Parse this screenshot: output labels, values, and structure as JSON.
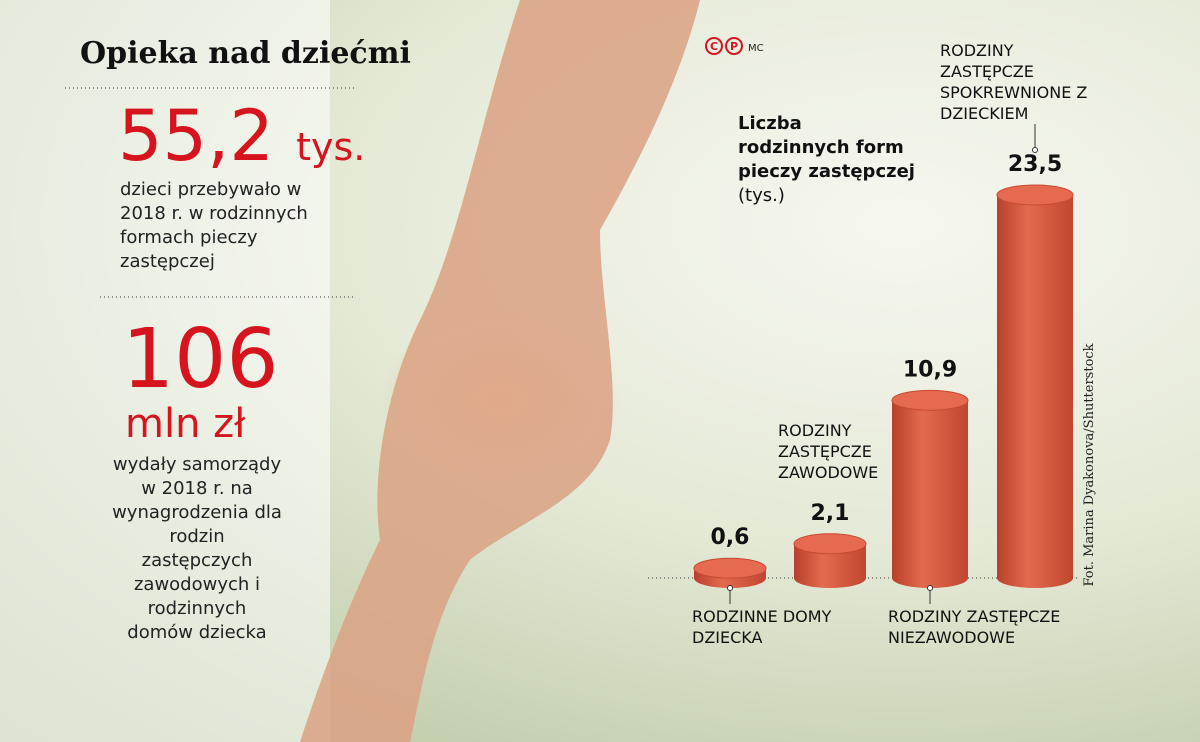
{
  "header": {
    "title": "Opieka nad dziećmi",
    "credit": "MC",
    "photo_credit": "Fot. Marina Dyakonova/Shutterstock"
  },
  "stats": [
    {
      "value": "55,2",
      "unit": "tys.",
      "text": "dzieci przebywało w 2018 r. w rodzinnych formach pieczy zastępczej"
    },
    {
      "value": "106",
      "unit": "mln zł",
      "text": "wydały samorządy w 2018 r. na wynagrodzenia dla rodzin zastępczych zawodowych i rodzinnych domów dziecka"
    }
  ],
  "chart_data": {
    "type": "bar",
    "title": "Liczba rodzinnych form pieczy zastępczej",
    "unit": "(tys.)",
    "categories": [
      "RODZINNE DOMY DZIECKA",
      "RODZINY ZASTĘPCZE ZAWODOWE",
      "RODZINY ZASTĘPCZE NIEZAWODOWE",
      "RODZINY ZASTĘPCZE SPOKREWNIONE Z DZIECKIEM"
    ],
    "values": [
      0.6,
      2.1,
      10.9,
      23.5
    ],
    "value_labels": [
      "0,6",
      "2,1",
      "10,9",
      "23,5"
    ],
    "color": "#d9573d"
  }
}
